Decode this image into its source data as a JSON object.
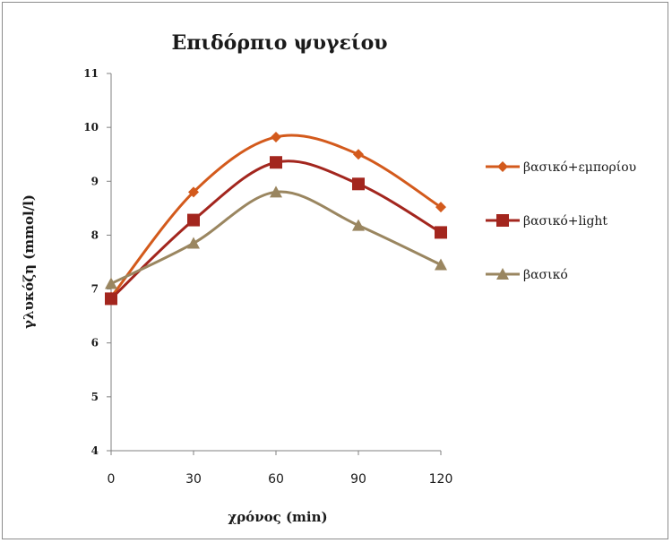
{
  "chart_data": {
    "type": "line",
    "title": "Επιδόρπιο ψυγείου",
    "xlabel": "χρόνος (min)",
    "ylabel": "γλυκόζη (mmol/l)",
    "x": [
      0,
      30,
      60,
      90,
      120
    ],
    "xlim": [
      0,
      120
    ],
    "ylim": [
      4,
      11
    ],
    "yticks": [
      "4",
      "5",
      "6",
      "7",
      "8",
      "9",
      "10",
      "11"
    ],
    "xticks": [
      "0",
      "30",
      "60",
      "90",
      "120"
    ],
    "grid": false,
    "legend_position": "right",
    "series": [
      {
        "name": "βασικό+εμπορίου",
        "values": [
          6.85,
          8.8,
          9.82,
          9.5,
          8.52
        ],
        "color": "#d35a1c",
        "marker": "diamond"
      },
      {
        "name": "βασικό+light",
        "values": [
          6.82,
          8.28,
          9.35,
          8.95,
          8.05
        ],
        "color": "#a3261e",
        "marker": "square"
      },
      {
        "name": "βασικό",
        "values": [
          7.1,
          7.85,
          8.8,
          8.18,
          7.45
        ],
        "color": "#9a8660",
        "marker": "triangle"
      }
    ]
  }
}
